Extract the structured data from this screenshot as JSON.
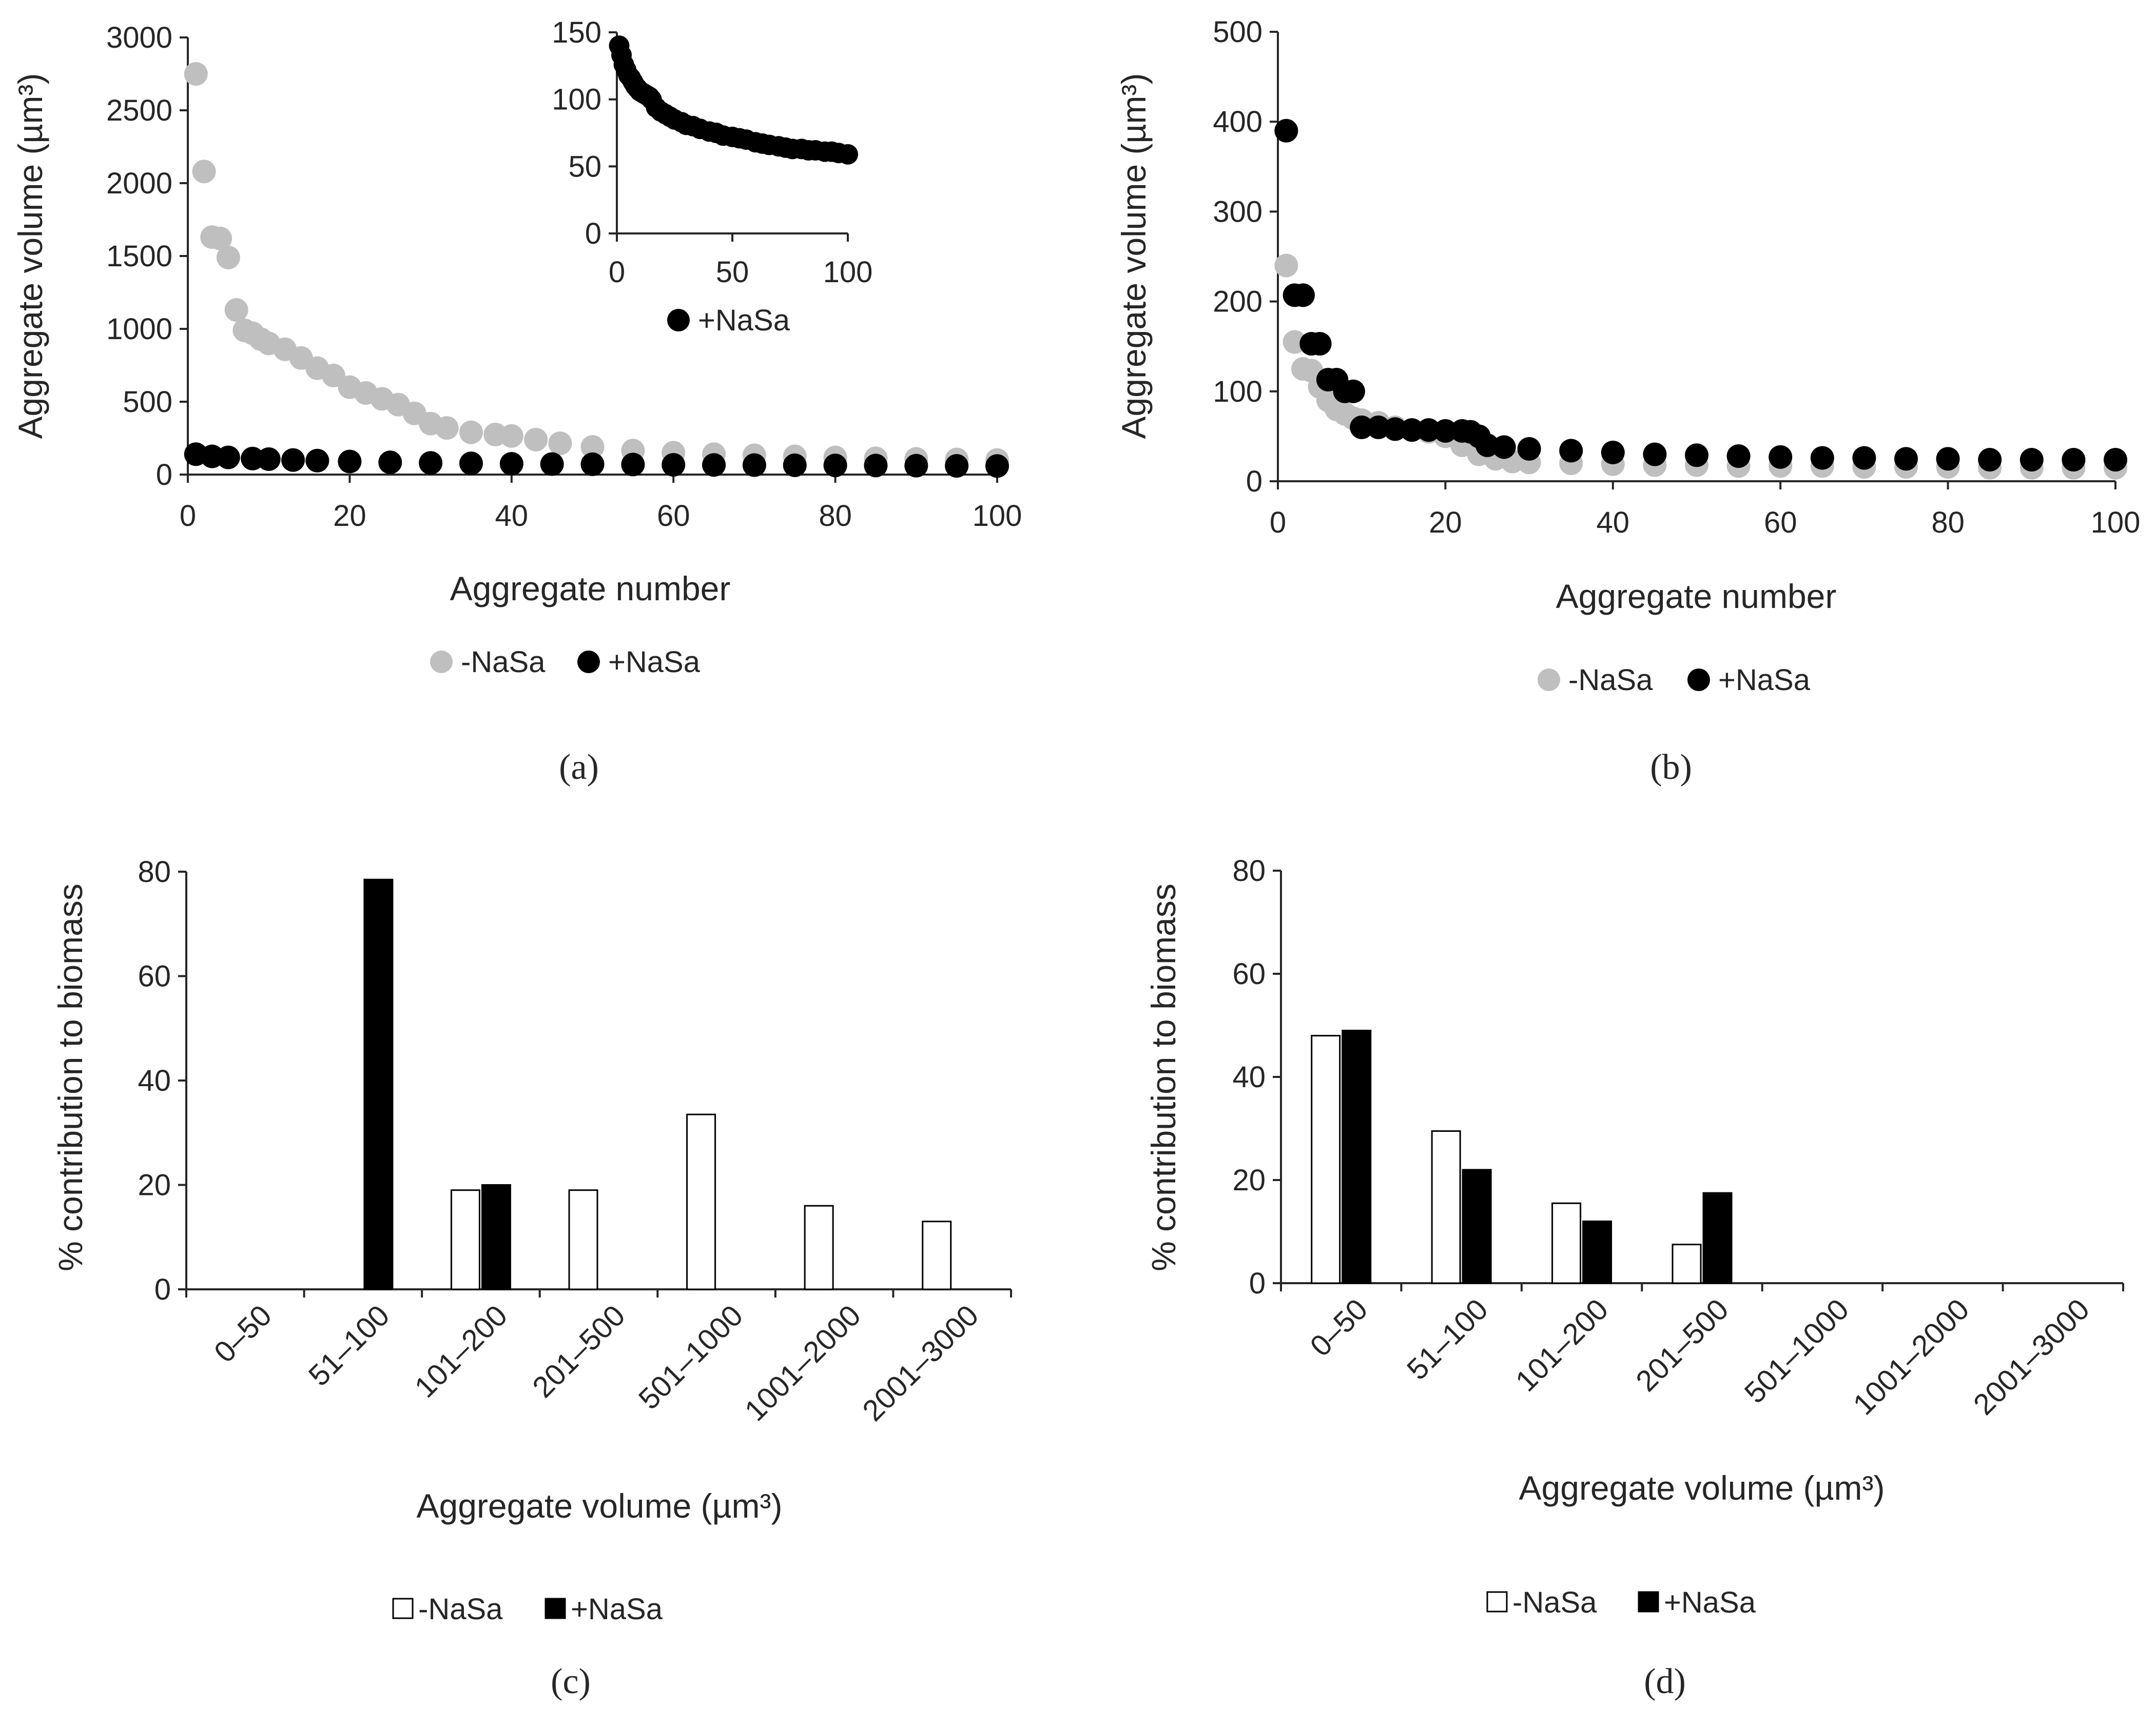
{
  "chart_data": [
    {
      "panel": "(a)",
      "type": "scatter",
      "xlabel": "Aggregate number",
      "ylabel": "Aggregate volume (µm³)",
      "xlim": [
        0,
        100
      ],
      "ylim": [
        0,
        3000
      ],
      "xticks": [
        0,
        20,
        40,
        60,
        80,
        100
      ],
      "yticks": [
        0,
        500,
        1000,
        1500,
        2000,
        2500,
        3000
      ],
      "legend": "bottom",
      "series": [
        {
          "name": "-NaSa",
          "color": "#bfbfbf",
          "points": [
            [
              1,
              2750
            ],
            [
              2,
              2080
            ],
            [
              3,
              1630
            ],
            [
              4,
              1620
            ],
            [
              5,
              1490
            ],
            [
              6,
              1130
            ],
            [
              7,
              990
            ],
            [
              8,
              970
            ],
            [
              9,
              930
            ],
            [
              10,
              900
            ],
            [
              12,
              860
            ],
            [
              14,
              800
            ],
            [
              16,
              730
            ],
            [
              18,
              680
            ],
            [
              20,
              600
            ],
            [
              22,
              560
            ],
            [
              24,
              520
            ],
            [
              26,
              480
            ],
            [
              28,
              420
            ],
            [
              30,
              350
            ],
            [
              32,
              320
            ],
            [
              35,
              290
            ],
            [
              38,
              275
            ],
            [
              40,
              265
            ],
            [
              43,
              240
            ],
            [
              46,
              215
            ],
            [
              50,
              190
            ],
            [
              55,
              165
            ],
            [
              60,
              150
            ],
            [
              65,
              140
            ],
            [
              70,
              132
            ],
            [
              75,
              125
            ],
            [
              80,
              118
            ],
            [
              85,
              112
            ],
            [
              90,
              108
            ],
            [
              95,
              104
            ],
            [
              100,
              100
            ]
          ]
        },
        {
          "name": "+NaSa",
          "color": "#000000",
          "points": [
            [
              1,
              140
            ],
            [
              3,
              125
            ],
            [
              5,
              118
            ],
            [
              8,
              110
            ],
            [
              10,
              106
            ],
            [
              13,
              100
            ],
            [
              16,
              96
            ],
            [
              20,
              90
            ],
            [
              25,
              84
            ],
            [
              30,
              80
            ],
            [
              35,
              77
            ],
            [
              40,
              74
            ],
            [
              45,
              72
            ],
            [
              50,
              71
            ],
            [
              55,
              69
            ],
            [
              60,
              67
            ],
            [
              65,
              66
            ],
            [
              70,
              65
            ],
            [
              75,
              64
            ],
            [
              80,
              63
            ],
            [
              85,
              62
            ],
            [
              90,
              61
            ],
            [
              95,
              60
            ],
            [
              100,
              59
            ]
          ]
        }
      ]
    },
    {
      "panel": "inset of (a)",
      "type": "scatter",
      "xlim": [
        0,
        100
      ],
      "ylim": [
        0,
        150
      ],
      "xticks": [
        0,
        50,
        100
      ],
      "yticks": [
        0,
        50,
        100,
        150
      ],
      "legend": "bottom",
      "series": [
        {
          "name": "+NaSa",
          "color": "#000000",
          "points": [
            [
              1,
              140
            ],
            [
              2,
              133
            ],
            [
              3,
              126
            ],
            [
              4,
              122
            ],
            [
              5,
              118
            ],
            [
              6,
              116
            ],
            [
              7,
              113
            ],
            [
              8,
              110
            ],
            [
              9,
              108
            ],
            [
              10,
              106
            ],
            [
              11,
              105
            ],
            [
              12,
              104
            ],
            [
              13,
              103
            ],
            [
              14,
              102
            ],
            [
              15,
              100
            ],
            [
              17,
              94
            ],
            [
              19,
              91
            ],
            [
              21,
              89
            ],
            [
              23,
              87
            ],
            [
              25,
              85
            ],
            [
              28,
              83
            ],
            [
              30,
              81
            ],
            [
              33,
              80
            ],
            [
              36,
              78
            ],
            [
              40,
              76
            ],
            [
              43,
              75
            ],
            [
              46,
              73
            ],
            [
              50,
              72
            ],
            [
              53,
              71
            ],
            [
              56,
              70
            ],
            [
              60,
              68
            ],
            [
              63,
              67
            ],
            [
              66,
              66
            ],
            [
              70,
              65
            ],
            [
              73,
              64
            ],
            [
              76,
              63
            ],
            [
              80,
              63
            ],
            [
              83,
              62
            ],
            [
              86,
              62
            ],
            [
              90,
              61
            ],
            [
              93,
              61
            ],
            [
              96,
              60
            ],
            [
              100,
              59
            ]
          ]
        }
      ]
    },
    {
      "panel": "(b)",
      "type": "scatter",
      "xlabel": "Aggregate number",
      "ylabel": "Aggregate volume (µm³)",
      "xlim": [
        0,
        100
      ],
      "ylim": [
        0,
        500
      ],
      "xticks": [
        0,
        20,
        40,
        60,
        80,
        100
      ],
      "yticks": [
        0,
        100,
        200,
        300,
        400,
        500
      ],
      "legend": "bottom",
      "series": [
        {
          "name": "-NaSa",
          "color": "#bfbfbf",
          "points": [
            [
              1,
              240
            ],
            [
              2,
              155
            ],
            [
              3,
              125
            ],
            [
              4,
              123
            ],
            [
              5,
              105
            ],
            [
              6,
              90
            ],
            [
              7,
              80
            ],
            [
              8,
              75
            ],
            [
              9,
              70
            ],
            [
              10,
              68
            ],
            [
              12,
              65
            ],
            [
              14,
              60
            ],
            [
              16,
              57
            ],
            [
              18,
              55
            ],
            [
              20,
              50
            ],
            [
              22,
              40
            ],
            [
              24,
              30
            ],
            [
              26,
              25
            ],
            [
              28,
              22
            ],
            [
              30,
              21
            ],
            [
              35,
              20
            ],
            [
              40,
              19
            ],
            [
              45,
              18
            ],
            [
              50,
              18
            ],
            [
              55,
              17
            ],
            [
              60,
              17
            ],
            [
              65,
              17
            ],
            [
              70,
              16
            ],
            [
              75,
              16
            ],
            [
              80,
              16
            ],
            [
              85,
              15
            ],
            [
              90,
              15
            ],
            [
              95,
              15
            ],
            [
              100,
              15
            ]
          ]
        },
        {
          "name": "+NaSa",
          "color": "#000000",
          "points": [
            [
              1,
              390
            ],
            [
              2,
              207
            ],
            [
              3,
              207
            ],
            [
              4,
              153
            ],
            [
              5,
              153
            ],
            [
              6,
              113
            ],
            [
              7,
              113
            ],
            [
              8,
              100
            ],
            [
              9,
              100
            ],
            [
              10,
              60
            ],
            [
              12,
              60
            ],
            [
              14,
              58
            ],
            [
              16,
              57
            ],
            [
              18,
              57
            ],
            [
              20,
              56
            ],
            [
              22,
              56
            ],
            [
              23,
              55
            ],
            [
              24,
              50
            ],
            [
              25,
              40
            ],
            [
              27,
              38
            ],
            [
              30,
              36
            ],
            [
              35,
              34
            ],
            [
              40,
              32
            ],
            [
              45,
              30
            ],
            [
              50,
              29
            ],
            [
              55,
              28
            ],
            [
              60,
              27
            ],
            [
              65,
              26
            ],
            [
              70,
              26
            ],
            [
              75,
              25
            ],
            [
              80,
              25
            ],
            [
              85,
              24
            ],
            [
              90,
              24
            ],
            [
              95,
              24
            ],
            [
              100,
              24
            ]
          ]
        }
      ]
    },
    {
      "panel": "(c)",
      "type": "bar",
      "xlabel": "Aggregate volume (µm³)",
      "ylabel": "% contribution to biomass",
      "ylim": [
        0,
        80
      ],
      "yticks": [
        0,
        20,
        40,
        60,
        80
      ],
      "legend": "bottom",
      "categories": [
        "0–50",
        "51–100",
        "101–200",
        "201–500",
        "501–1000",
        "1001–2000",
        "2001–3000"
      ],
      "series": [
        {
          "name": "-NaSa",
          "color": "#ffffff",
          "values": [
            0,
            0,
            19,
            19,
            33.5,
            16,
            13
          ]
        },
        {
          "name": "+NaSa",
          "color": "#000000",
          "values": [
            0,
            78.5,
            20,
            0,
            0,
            0,
            0
          ]
        }
      ]
    },
    {
      "panel": "(d)",
      "type": "bar",
      "xlabel": "Aggregate volume (µm³)",
      "ylabel": "% contribution to biomass",
      "ylim": [
        0,
        80
      ],
      "yticks": [
        0,
        20,
        40,
        60,
        80
      ],
      "legend": "bottom",
      "categories": [
        "0–50",
        "51–100",
        "101–200",
        "201–500",
        "501–1000",
        "1001–2000",
        "2001–3000"
      ],
      "series": [
        {
          "name": "-NaSa",
          "color": "#ffffff",
          "values": [
            48,
            29.5,
            15.5,
            7.5,
            0,
            0,
            0
          ]
        },
        {
          "name": "+NaSa",
          "color": "#000000",
          "values": [
            49,
            22,
            12,
            17.5,
            0,
            0,
            0
          ]
        }
      ]
    }
  ]
}
